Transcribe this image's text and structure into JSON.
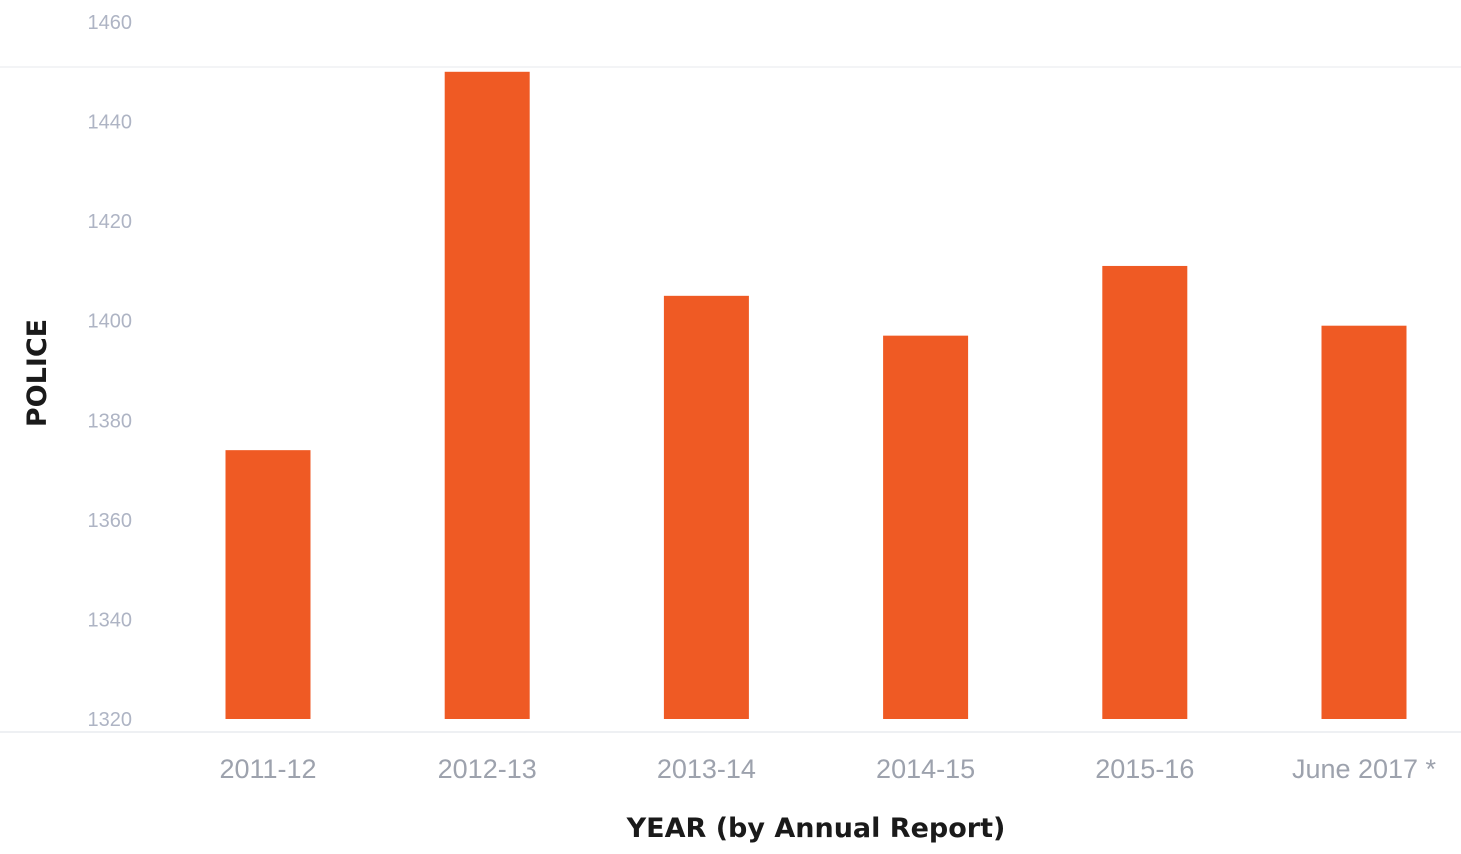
{
  "chart_data": {
    "type": "bar",
    "categories": [
      "2011-12",
      "2012-13",
      "2013-14",
      "2014-15",
      "2015-16",
      "June 2017 *"
    ],
    "values": [
      1374,
      1450,
      1405,
      1397,
      1411,
      1399
    ],
    "title": "",
    "xlabel": "YEAR (by Annual Report)",
    "ylabel": "POLICE",
    "ylim": [
      1320,
      1460
    ],
    "yticks": [
      1320,
      1340,
      1360,
      1380,
      1400,
      1420,
      1440,
      1460
    ],
    "grid": false,
    "legend": "none",
    "colors": {
      "bar": "#ef5a24",
      "tick_text": "#aeb4c4",
      "axis_title": "#1a1a1a"
    }
  }
}
